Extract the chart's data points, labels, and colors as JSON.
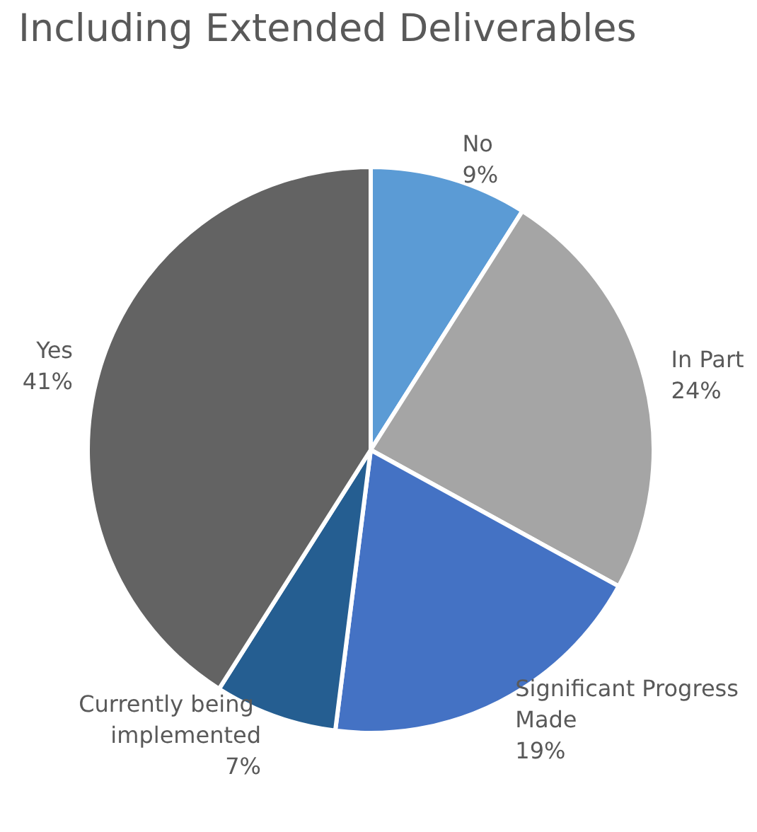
{
  "chart_data": {
    "type": "pie",
    "title": "Including Extended Deliverables",
    "categories": [
      "No",
      "In Part",
      "Significant Progress Made",
      "Currently being implemented",
      "Yes"
    ],
    "values": [
      9,
      24,
      19,
      7,
      41
    ],
    "value_labels": [
      "9%",
      "24%",
      "19%",
      "7%",
      "41%"
    ],
    "colors": [
      "#5b9bd5",
      "#a5a5a5",
      "#4472c4",
      "#255e91",
      "#636363"
    ],
    "legend": false
  }
}
